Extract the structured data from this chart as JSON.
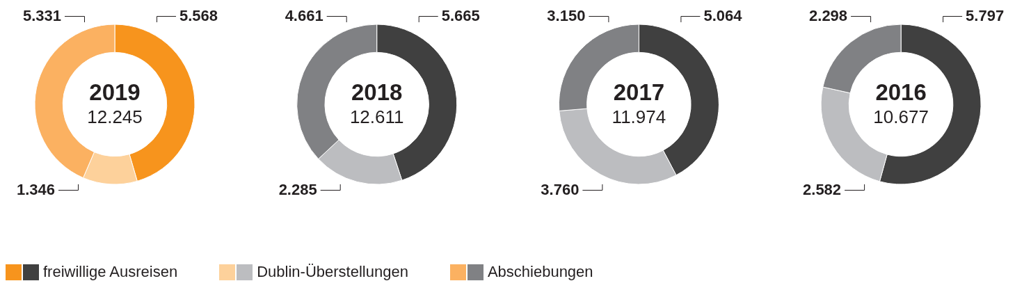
{
  "chart_data": {
    "type": "donut",
    "categories": [
      "freiwillige Ausreisen",
      "Dublin-Überstellungen",
      "Abschiebungen"
    ],
    "series": [
      {
        "name": "2019",
        "values": [
          5568,
          1346,
          5331
        ],
        "colors": [
          "#f7941d",
          "#fdd19b",
          "#fbb161"
        ],
        "value_labels": [
          "5.568",
          "1.346",
          "5.331"
        ]
      },
      {
        "name": "2018",
        "values": [
          5665,
          2285,
          4661
        ],
        "colors": [
          "#404040",
          "#bcbdc0",
          "#808184"
        ],
        "value_labels": [
          "5.665",
          "2.285",
          "4.661"
        ]
      },
      {
        "name": "2017",
        "values": [
          5064,
          3760,
          3150
        ],
        "colors": [
          "#404040",
          "#bcbdc0",
          "#808184"
        ],
        "value_labels": [
          "5.064",
          "3.760",
          "3.150"
        ]
      },
      {
        "name": "2016",
        "values": [
          5797,
          2582,
          2298
        ],
        "colors": [
          "#404040",
          "#bcbdc0",
          "#808184"
        ],
        "value_labels": [
          "5.797",
          "2.582",
          "2.298"
        ]
      }
    ],
    "annotations": [
      "12.245",
      "12.611",
      "11.974",
      "10.677"
    ],
    "legend": "bottom"
  }
}
